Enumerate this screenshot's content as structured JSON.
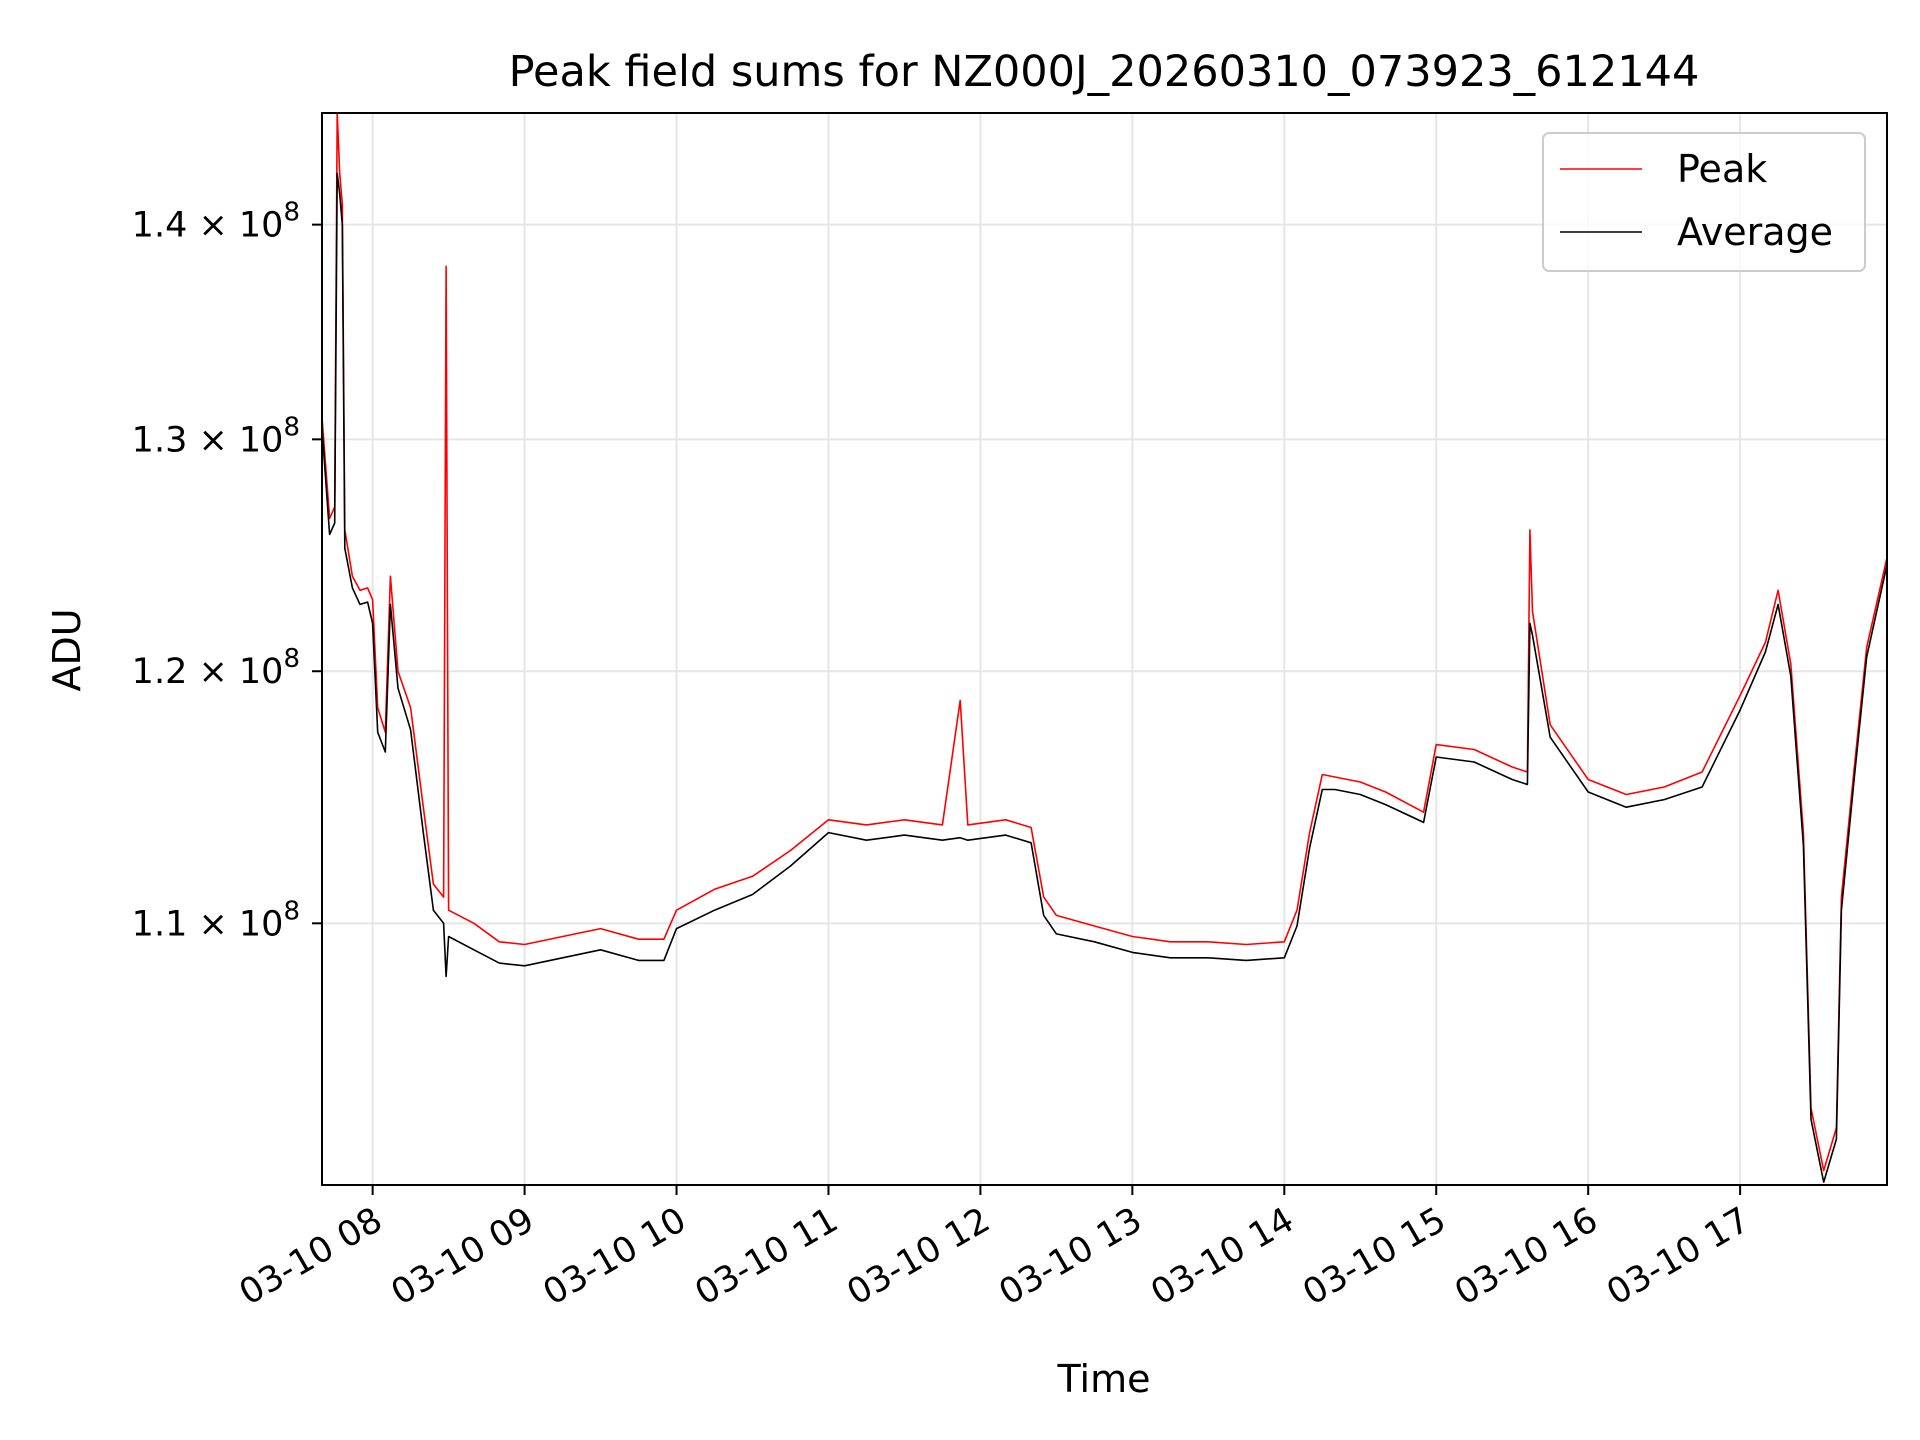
{
  "chart_data": {
    "type": "line",
    "title": "Peak field sums for NZ000J_20260310_073923_612144",
    "xlabel": "Time",
    "ylabel": "ADU",
    "y_scale": "log",
    "grid": true,
    "legend_position": "upper right",
    "x_range": [
      "2026-03-10 07:40",
      "2026-03-10 17:58"
    ],
    "ylim": [
      100500000,
      145500000
    ],
    "x_ticks": [
      {
        "value": "2026-03-10 08:00",
        "label": "03-10 08"
      },
      {
        "value": "2026-03-10 09:00",
        "label": "03-10 09"
      },
      {
        "value": "2026-03-10 10:00",
        "label": "03-10 10"
      },
      {
        "value": "2026-03-10 11:00",
        "label": "03-10 11"
      },
      {
        "value": "2026-03-10 12:00",
        "label": "03-10 12"
      },
      {
        "value": "2026-03-10 13:00",
        "label": "03-10 13"
      },
      {
        "value": "2026-03-10 14:00",
        "label": "03-10 14"
      },
      {
        "value": "2026-03-10 15:00",
        "label": "03-10 15"
      },
      {
        "value": "2026-03-10 16:00",
        "label": "03-10 16"
      },
      {
        "value": "2026-03-10 17:00",
        "label": "03-10 17"
      }
    ],
    "y_ticks": [
      {
        "value": 110000000,
        "mantissa": "1.1",
        "base": "10",
        "exponent": "8"
      },
      {
        "value": 120000000,
        "mantissa": "1.2",
        "base": "10",
        "exponent": "8"
      },
      {
        "value": 130000000,
        "mantissa": "1.3",
        "base": "10",
        "exponent": "8"
      },
      {
        "value": 140000000,
        "mantissa": "1.4",
        "base": "10",
        "exponent": "8"
      }
    ],
    "series": [
      {
        "name": "Peak",
        "color": "#ff0000",
        "points": [
          [
            "2026-03-10 07:40",
            131000000
          ],
          [
            "2026-03-10 07:43",
            126500000
          ],
          [
            "2026-03-10 07:45",
            127000000
          ],
          [
            "2026-03-10 07:46",
            145500000
          ],
          [
            "2026-03-10 07:47",
            142500000
          ],
          [
            "2026-03-10 07:48",
            141000000
          ],
          [
            "2026-03-10 07:49",
            126000000
          ],
          [
            "2026-03-10 07:52",
            124000000
          ],
          [
            "2026-03-10 07:55",
            123400000
          ],
          [
            "2026-03-10 07:58",
            123500000
          ],
          [
            "2026-03-10 08:00",
            123000000
          ],
          [
            "2026-03-10 08:02",
            118500000
          ],
          [
            "2026-03-10 08:05",
            117500000
          ],
          [
            "2026-03-10 08:07",
            124000000
          ],
          [
            "2026-03-10 08:10",
            120000000
          ],
          [
            "2026-03-10 08:15",
            118500000
          ],
          [
            "2026-03-10 08:20",
            114500000
          ],
          [
            "2026-03-10 08:24",
            111500000
          ],
          [
            "2026-03-10 08:28",
            111000000
          ],
          [
            "2026-03-10 08:29",
            138000000
          ],
          [
            "2026-03-10 08:30",
            110500000
          ],
          [
            "2026-03-10 08:40",
            110000000
          ],
          [
            "2026-03-10 08:50",
            109300000
          ],
          [
            "2026-03-10 09:00",
            109200000
          ],
          [
            "2026-03-10 09:15",
            109500000
          ],
          [
            "2026-03-10 09:30",
            109800000
          ],
          [
            "2026-03-10 09:45",
            109400000
          ],
          [
            "2026-03-10 09:55",
            109400000
          ],
          [
            "2026-03-10 10:00",
            110500000
          ],
          [
            "2026-03-10 10:15",
            111300000
          ],
          [
            "2026-03-10 10:30",
            111800000
          ],
          [
            "2026-03-10 10:45",
            112800000
          ],
          [
            "2026-03-10 11:00",
            114000000
          ],
          [
            "2026-03-10 11:15",
            113800000
          ],
          [
            "2026-03-10 11:30",
            114000000
          ],
          [
            "2026-03-10 11:45",
            113800000
          ],
          [
            "2026-03-10 11:52",
            118800000
          ],
          [
            "2026-03-10 11:55",
            113800000
          ],
          [
            "2026-03-10 12:10",
            114000000
          ],
          [
            "2026-03-10 12:20",
            113700000
          ],
          [
            "2026-03-10 12:25",
            111000000
          ],
          [
            "2026-03-10 12:30",
            110300000
          ],
          [
            "2026-03-10 12:45",
            109900000
          ],
          [
            "2026-03-10 13:00",
            109500000
          ],
          [
            "2026-03-10 13:15",
            109300000
          ],
          [
            "2026-03-10 13:30",
            109300000
          ],
          [
            "2026-03-10 13:45",
            109200000
          ],
          [
            "2026-03-10 14:00",
            109300000
          ],
          [
            "2026-03-10 14:05",
            110500000
          ],
          [
            "2026-03-10 14:10",
            113500000
          ],
          [
            "2026-03-10 14:15",
            115800000
          ],
          [
            "2026-03-10 14:20",
            115700000
          ],
          [
            "2026-03-10 14:30",
            115500000
          ],
          [
            "2026-03-10 14:40",
            115100000
          ],
          [
            "2026-03-10 14:55",
            114300000
          ],
          [
            "2026-03-10 15:00",
            117000000
          ],
          [
            "2026-03-10 15:15",
            116800000
          ],
          [
            "2026-03-10 15:30",
            116100000
          ],
          [
            "2026-03-10 15:36",
            115900000
          ],
          [
            "2026-03-10 15:37",
            126000000
          ],
          [
            "2026-03-10 15:38",
            122500000
          ],
          [
            "2026-03-10 15:45",
            117800000
          ],
          [
            "2026-03-10 16:00",
            115600000
          ],
          [
            "2026-03-10 16:15",
            115000000
          ],
          [
            "2026-03-10 16:30",
            115300000
          ],
          [
            "2026-03-10 16:45",
            115900000
          ],
          [
            "2026-03-10 17:00",
            119000000
          ],
          [
            "2026-03-10 17:10",
            121200000
          ],
          [
            "2026-03-10 17:15",
            123400000
          ],
          [
            "2026-03-10 17:20",
            120300000
          ],
          [
            "2026-03-10 17:25",
            113500000
          ],
          [
            "2026-03-10 17:28",
            103200000
          ],
          [
            "2026-03-10 17:33",
            101000000
          ],
          [
            "2026-03-10 17:38",
            102500000
          ],
          [
            "2026-03-10 17:40",
            111000000
          ],
          [
            "2026-03-10 17:45",
            116000000
          ],
          [
            "2026-03-10 17:50",
            121000000
          ],
          [
            "2026-03-10 17:58",
            124800000
          ]
        ]
      },
      {
        "name": "Average",
        "color": "#000000",
        "points": [
          [
            "2026-03-10 07:40",
            130500000
          ],
          [
            "2026-03-10 07:43",
            125800000
          ],
          [
            "2026-03-10 07:45",
            126300000
          ],
          [
            "2026-03-10 07:46",
            142500000
          ],
          [
            "2026-03-10 07:47",
            141500000
          ],
          [
            "2026-03-10 07:48",
            140000000
          ],
          [
            "2026-03-10 07:49",
            125200000
          ],
          [
            "2026-03-10 07:52",
            123500000
          ],
          [
            "2026-03-10 07:55",
            122800000
          ],
          [
            "2026-03-10 07:58",
            122900000
          ],
          [
            "2026-03-10 08:00",
            122000000
          ],
          [
            "2026-03-10 08:02",
            117500000
          ],
          [
            "2026-03-10 08:05",
            116700000
          ],
          [
            "2026-03-10 08:07",
            122800000
          ],
          [
            "2026-03-10 08:10",
            119300000
          ],
          [
            "2026-03-10 08:15",
            117600000
          ],
          [
            "2026-03-10 08:20",
            113500000
          ],
          [
            "2026-03-10 08:24",
            110500000
          ],
          [
            "2026-03-10 08:28",
            110000000
          ],
          [
            "2026-03-10 08:29",
            108000000
          ],
          [
            "2026-03-10 08:30",
            109500000
          ],
          [
            "2026-03-10 08:40",
            109000000
          ],
          [
            "2026-03-10 08:50",
            108500000
          ],
          [
            "2026-03-10 09:00",
            108400000
          ],
          [
            "2026-03-10 09:15",
            108700000
          ],
          [
            "2026-03-10 09:30",
            109000000
          ],
          [
            "2026-03-10 09:45",
            108600000
          ],
          [
            "2026-03-10 09:55",
            108600000
          ],
          [
            "2026-03-10 10:00",
            109800000
          ],
          [
            "2026-03-10 10:15",
            110500000
          ],
          [
            "2026-03-10 10:30",
            111100000
          ],
          [
            "2026-03-10 10:45",
            112200000
          ],
          [
            "2026-03-10 11:00",
            113500000
          ],
          [
            "2026-03-10 11:15",
            113200000
          ],
          [
            "2026-03-10 11:30",
            113400000
          ],
          [
            "2026-03-10 11:45",
            113200000
          ],
          [
            "2026-03-10 11:52",
            113300000
          ],
          [
            "2026-03-10 11:55",
            113200000
          ],
          [
            "2026-03-10 12:10",
            113400000
          ],
          [
            "2026-03-10 12:20",
            113100000
          ],
          [
            "2026-03-10 12:25",
            110300000
          ],
          [
            "2026-03-10 12:30",
            109600000
          ],
          [
            "2026-03-10 12:45",
            109300000
          ],
          [
            "2026-03-10 13:00",
            108900000
          ],
          [
            "2026-03-10 13:15",
            108700000
          ],
          [
            "2026-03-10 13:30",
            108700000
          ],
          [
            "2026-03-10 13:45",
            108600000
          ],
          [
            "2026-03-10 14:00",
            108700000
          ],
          [
            "2026-03-10 14:05",
            109900000
          ],
          [
            "2026-03-10 14:10",
            112900000
          ],
          [
            "2026-03-10 14:15",
            115200000
          ],
          [
            "2026-03-10 14:20",
            115200000
          ],
          [
            "2026-03-10 14:30",
            115000000
          ],
          [
            "2026-03-10 14:40",
            114600000
          ],
          [
            "2026-03-10 14:55",
            113900000
          ],
          [
            "2026-03-10 15:00",
            116500000
          ],
          [
            "2026-03-10 15:15",
            116300000
          ],
          [
            "2026-03-10 15:30",
            115600000
          ],
          [
            "2026-03-10 15:36",
            115400000
          ],
          [
            "2026-03-10 15:37",
            122000000
          ],
          [
            "2026-03-10 15:38",
            121500000
          ],
          [
            "2026-03-10 15:45",
            117300000
          ],
          [
            "2026-03-10 16:00",
            115100000
          ],
          [
            "2026-03-10 16:15",
            114500000
          ],
          [
            "2026-03-10 16:30",
            114800000
          ],
          [
            "2026-03-10 16:45",
            115300000
          ],
          [
            "2026-03-10 17:00",
            118400000
          ],
          [
            "2026-03-10 17:10",
            120800000
          ],
          [
            "2026-03-10 17:15",
            122800000
          ],
          [
            "2026-03-10 17:20",
            119800000
          ],
          [
            "2026-03-10 17:25",
            113000000
          ],
          [
            "2026-03-10 17:28",
            102800000
          ],
          [
            "2026-03-10 17:33",
            100600000
          ],
          [
            "2026-03-10 17:38",
            102100000
          ],
          [
            "2026-03-10 17:40",
            110500000
          ],
          [
            "2026-03-10 17:45",
            115600000
          ],
          [
            "2026-03-10 17:50",
            120600000
          ],
          [
            "2026-03-10 17:58",
            124500000
          ]
        ]
      }
    ]
  }
}
